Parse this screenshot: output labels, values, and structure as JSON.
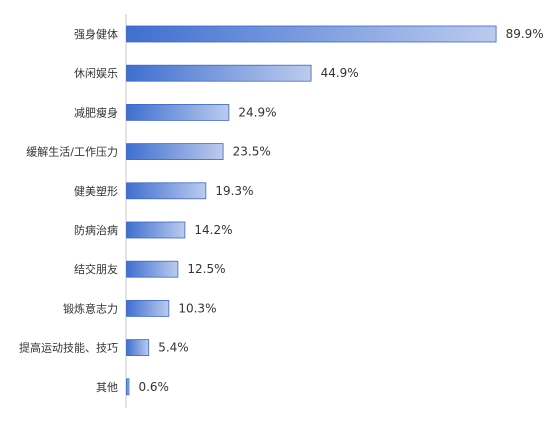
{
  "chart_data": {
    "type": "bar",
    "orientation": "horizontal",
    "categories": [
      "强身健体",
      "休闲娱乐",
      "减肥瘦身",
      "缓解生活/工作压力",
      "健美塑形",
      "防病治病",
      "结交朋友",
      "锻炼意志力",
      "提高运动技能、技巧",
      "其他"
    ],
    "values": [
      89.9,
      44.9,
      24.9,
      23.5,
      19.3,
      14.2,
      12.5,
      10.3,
      5.4,
      0.6
    ],
    "value_labels": [
      "89.9%",
      "44.9%",
      "24.9%",
      "23.5%",
      "19.3%",
      "14.2%",
      "12.5%",
      "10.3%",
      "5.4%",
      "0.6%"
    ],
    "xlim": [
      0,
      90
    ],
    "unit": "%",
    "grid": false,
    "legend": "none",
    "colors": {
      "bar_start": "#3f6fd0",
      "bar_end": "#bccbee",
      "bar_stroke": "#3e67c8",
      "axis": "#c9c9c9",
      "label": "#333333"
    }
  }
}
